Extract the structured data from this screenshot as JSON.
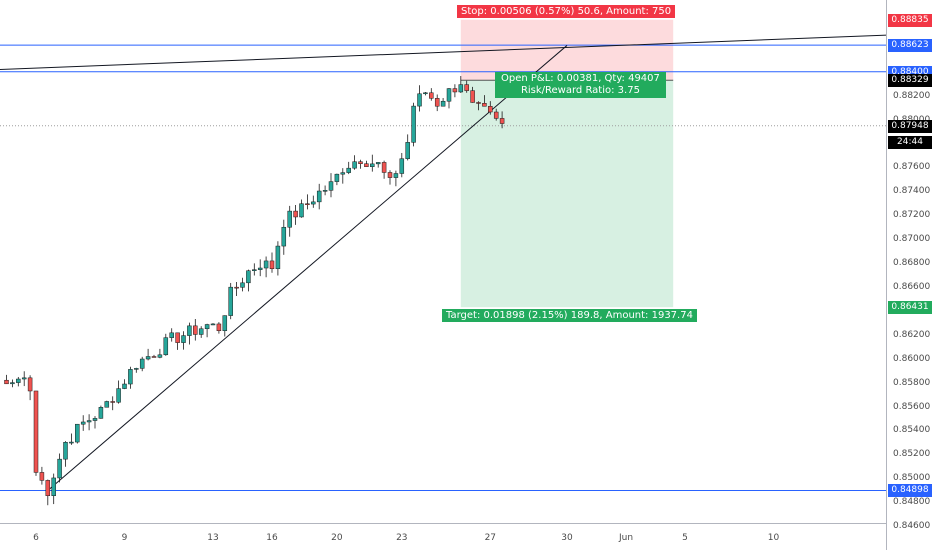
{
  "chart_data": {
    "type": "candlestick",
    "price_axis": {
      "min": 0.844,
      "max": 0.89,
      "ticks": [
        "0.88200",
        "0.88000",
        "0.87600",
        "0.87400",
        "0.87200",
        "0.87000",
        "0.86800",
        "0.86600",
        "0.86200",
        "0.86000",
        "0.85800",
        "0.85600",
        "0.85400",
        "0.85200",
        "0.85000",
        "0.84800",
        "0.84600"
      ],
      "labels": [
        {
          "text": "0.88835",
          "price": 0.88835,
          "color": "#f23645"
        },
        {
          "text": "0.88623",
          "price": 0.88623,
          "color": "#2962ff"
        },
        {
          "text": "0.88400",
          "price": 0.884,
          "color": "#2962ff"
        },
        {
          "text": "0.88329",
          "price": 0.88329,
          "color": "#000000"
        },
        {
          "text": "0.87948",
          "price": 0.87948,
          "color": "#000000"
        },
        {
          "text": "24:44",
          "price": 0.87815,
          "color": "#000000"
        },
        {
          "text": "0.86431",
          "price": 0.86431,
          "color": "#22ab5d"
        },
        {
          "text": "0.84898",
          "price": 0.84898,
          "color": "#2962ff"
        }
      ]
    },
    "time_axis": {
      "ticks": [
        "6",
        "9",
        "13",
        "16",
        "20",
        "23",
        "27",
        "30",
        "Jun",
        "5",
        "10"
      ],
      "tick_index": [
        0,
        15,
        30,
        40,
        51,
        62,
        77,
        90,
        100,
        110,
        125
      ]
    },
    "candle_count": 80,
    "close_path": [
      [
        0,
        0.8505
      ],
      [
        2,
        0.849
      ],
      [
        5,
        0.853
      ],
      [
        8,
        0.8546
      ],
      [
        11,
        0.8556
      ],
      [
        14,
        0.8575
      ],
      [
        17,
        0.8596
      ],
      [
        20,
        0.8605
      ],
      [
        23,
        0.8616
      ],
      [
        26,
        0.8622
      ],
      [
        29,
        0.8628
      ],
      [
        31,
        0.8626
      ],
      [
        33,
        0.8654
      ],
      [
        36,
        0.8673
      ],
      [
        38,
        0.868
      ],
      [
        40,
        0.8677
      ],
      [
        42,
        0.8715
      ],
      [
        45,
        0.8725
      ],
      [
        48,
        0.8739
      ],
      [
        50,
        0.8745
      ],
      [
        52,
        0.876
      ],
      [
        55,
        0.8768
      ],
      [
        58,
        0.8762
      ],
      [
        60,
        0.8746
      ],
      [
        62,
        0.8768
      ],
      [
        63,
        0.8781
      ],
      [
        64,
        0.8812
      ],
      [
        66,
        0.8823
      ],
      [
        68,
        0.8814
      ],
      [
        70,
        0.8823
      ],
      [
        72,
        0.8832
      ],
      [
        74,
        0.881
      ],
      [
        76,
        0.8806
      ],
      [
        78,
        0.8798
      ],
      [
        79,
        0.8795
      ]
    ],
    "pre_candles": [
      0.8582,
      0.8579,
      0.858,
      0.8583,
      0.8584,
      0.8573
    ],
    "horizontal_lines": [
      {
        "name": "resistance",
        "price": 0.88623,
        "color": "#2962ff"
      },
      {
        "name": "entry",
        "price": 0.884,
        "color": "#2962ff"
      },
      {
        "name": "support",
        "price": 0.84898,
        "color": "#2962ff"
      },
      {
        "name": "last-price",
        "price": 0.87948,
        "color": "#9e9e9e"
      }
    ],
    "trendlines": [
      {
        "name": "rising-trendline",
        "from": [
          2,
          0.84898
        ],
        "to": [
          90,
          0.8862
        ]
      },
      {
        "name": "top-trendline",
        "from": [
          -16,
          0.884
        ],
        "to": [
          146,
          0.8871
        ]
      }
    ],
    "position": {
      "entry": 0.88329,
      "stop": 0.88835,
      "target": 0.86431,
      "start_index": 72,
      "end_index": 108,
      "stop_label": "Stop: 0.00506 (0.57%) 50.6, Amount: 750",
      "pnl_label": "Open P&L: 0.00381, Qty: 49407",
      "rr_label": "Risk/Reward Ratio: 3.75",
      "target_label": "Target: 0.01898 (2.15%) 189.8, Amount: 1937.74"
    }
  }
}
